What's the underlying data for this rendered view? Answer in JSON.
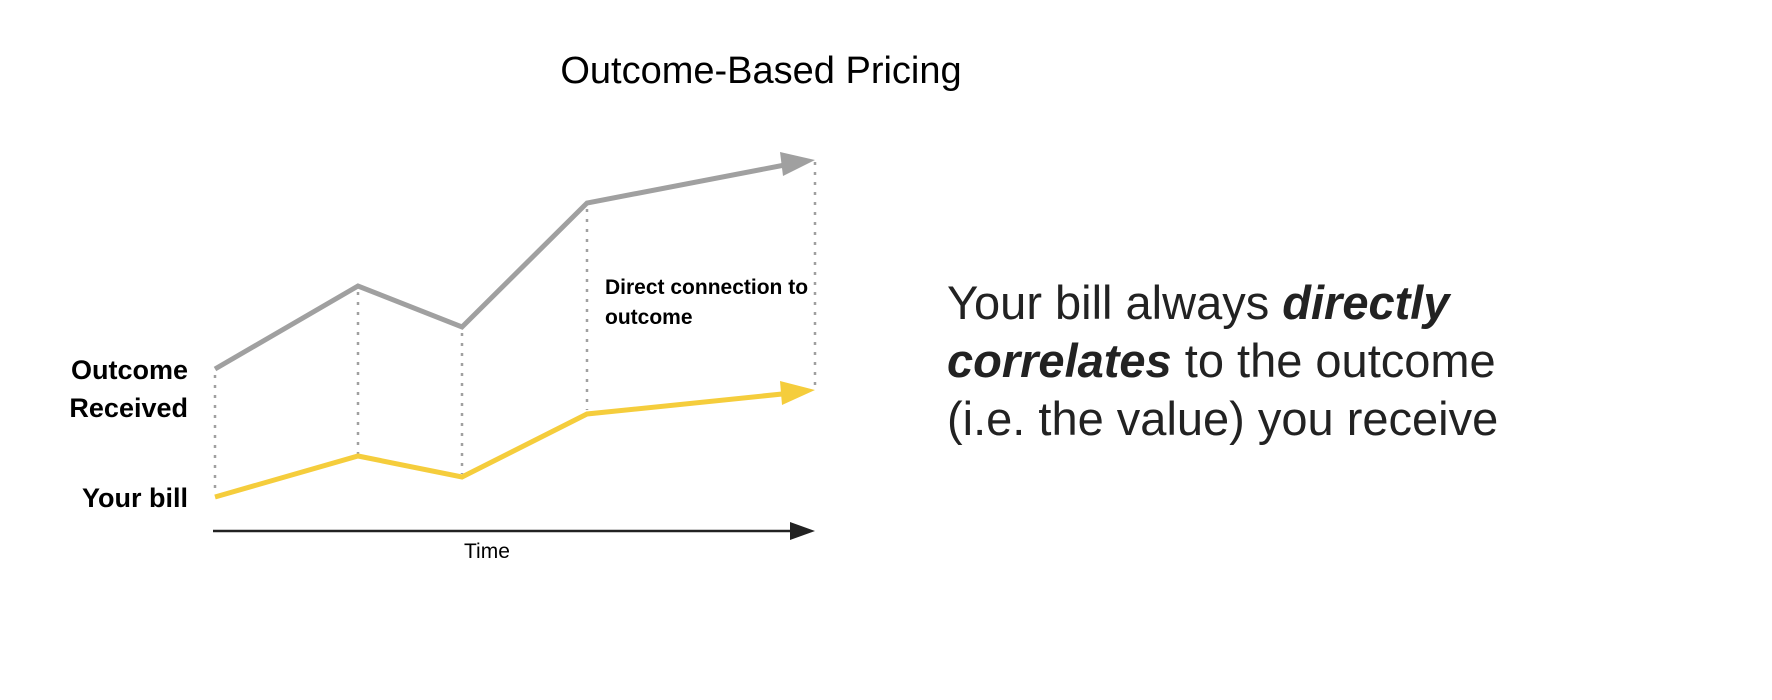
{
  "title": "Outcome-Based Pricing",
  "labels": {
    "outcome": "Outcome Received",
    "bill": "Your bill",
    "time": "Time",
    "note": "Direct connection to outcome"
  },
  "callout": {
    "part1": "Your bill always ",
    "emphasis": "directly correlates",
    "part2": " to the outcome (i.e. the value) you receive"
  },
  "colors": {
    "outcome": "#a0a0a0",
    "bill": "#f5cd3c",
    "axis": "#222222",
    "guides": "#a0a0a0"
  }
}
